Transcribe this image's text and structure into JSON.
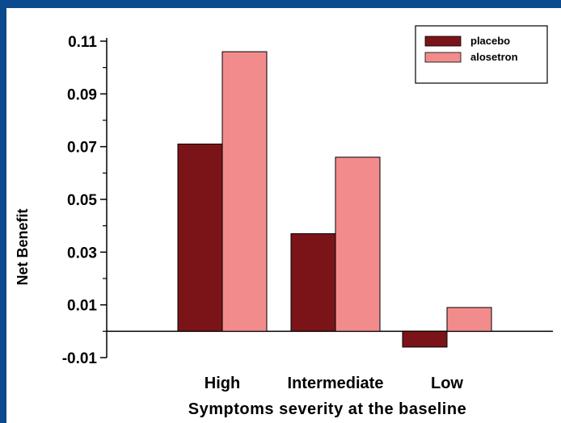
{
  "chart_data": {
    "type": "bar",
    "categories": [
      "High",
      "Intermediate",
      "Low"
    ],
    "series": [
      {
        "name": "placebo",
        "values": [
          0.071,
          0.037,
          -0.006
        ],
        "color": "#7b1418"
      },
      {
        "name": "alosetron",
        "values": [
          0.106,
          0.066,
          0.009
        ],
        "color": "#f28c8c"
      }
    ],
    "xlabel": "Symptoms severity at the baseline",
    "ylabel": "Net Benefit",
    "yticks": [
      0.11,
      0.09,
      0.07,
      0.05,
      0.03,
      0.01,
      -0.01
    ],
    "ytick_labels": [
      "0.11",
      "0.09",
      "0.07",
      "0.05",
      "0.03",
      "0.01",
      "-0.01"
    ],
    "ylim": [
      -0.01,
      0.11
    ],
    "grid": false,
    "legend_position": "top-right"
  },
  "colors": {
    "frame_border": "#0b4a8c",
    "axis": "#000000"
  }
}
